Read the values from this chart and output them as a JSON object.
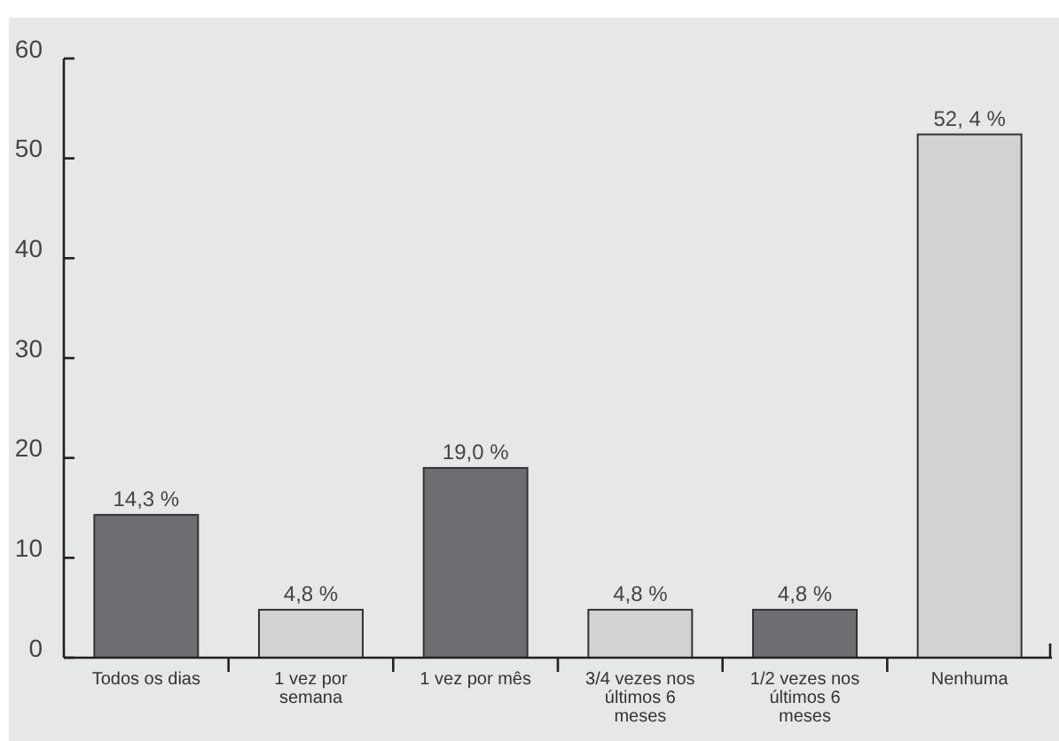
{
  "chart_data": {
    "type": "bar",
    "categories": [
      "Todos os dias",
      "1 vez por semana",
      "1 vez por mês",
      "3/4 vezes nos últimos 6 meses",
      "1/2 vezes nos últimos 6 meses",
      "Nenhuma"
    ],
    "values": [
      14.3,
      4.8,
      19.0,
      4.8,
      4.8,
      52.4
    ],
    "value_labels": [
      "14,3 %",
      "4,8 %",
      "19,0 %",
      "4,8 %",
      "4,8 %",
      "52, 4 %"
    ],
    "colors": [
      "#6d6e71",
      "#d1d2d4",
      "#6d6e71",
      "#d1d2d4",
      "#6d6e71",
      "#d1d2d4"
    ],
    "ylim": [
      0,
      60
    ],
    "yticks": [
      0,
      10,
      20,
      30,
      40,
      50,
      60
    ]
  }
}
